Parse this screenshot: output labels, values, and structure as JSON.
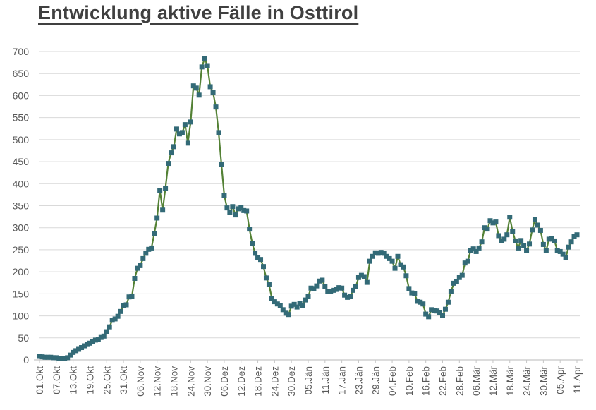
{
  "title": "Entwicklung aktive Fälle in Osttirol",
  "colors": {
    "line": "#538135",
    "marker": "#336A77",
    "grid": "#D9D9D9",
    "axis": "#C6C6C6",
    "tick_text": "#595959",
    "title_text": "#404040",
    "background": "#FFFFFF"
  },
  "chart_data": {
    "type": "line",
    "title": "Entwicklung aktive Fälle in Osttirol",
    "xlabel": "",
    "ylabel": "",
    "grid": "horizontal",
    "legend": "none",
    "marker": "square",
    "ylim": [
      0,
      700
    ],
    "y_tick_step": 50,
    "y_ticks": [
      0,
      50,
      100,
      150,
      200,
      250,
      300,
      350,
      400,
      450,
      500,
      550,
      600,
      650,
      700
    ],
    "x_tick_labels": [
      "01.Okt",
      "07.Okt",
      "13.Okt",
      "19.Okt",
      "25.Okt",
      "31.Okt",
      "06.Nov",
      "12.Nov",
      "18.Nov",
      "24.Nov",
      "30.Nov",
      "06.Dez",
      "12.Dez",
      "18.Dez",
      "24.Dez",
      "30.Dez",
      "05.Jän",
      "11.Jän",
      "17.Jän",
      "23.Jän",
      "29.Jän",
      "04.Feb",
      "10.Feb",
      "16.Feb",
      "22.Feb",
      "28.Feb",
      "06.Mär",
      "12.Mär",
      "18.Mär",
      "24.Mär",
      "30.Mär",
      "05.Apr",
      "11.Apr"
    ],
    "x_tick_every_n_points": 6,
    "x_is_daily": true,
    "values": [
      8,
      7,
      6,
      6,
      6,
      5,
      5,
      4,
      4,
      4,
      5,
      11,
      17,
      21,
      24,
      28,
      32,
      35,
      38,
      42,
      45,
      47,
      51,
      54,
      64,
      75,
      90,
      93,
      99,
      110,
      123,
      125,
      143,
      144,
      185,
      208,
      214,
      230,
      242,
      251,
      254,
      287,
      322,
      385,
      340,
      390,
      446,
      470,
      484,
      524,
      513,
      516,
      534,
      492,
      540,
      622,
      617,
      601,
      665,
      684,
      668,
      620,
      607,
      574,
      516,
      444,
      374,
      345,
      334,
      348,
      329,
      343,
      346,
      339,
      338,
      297,
      265,
      242,
      232,
      228,
      212,
      186,
      171,
      140,
      132,
      127,
      124,
      114,
      106,
      103,
      122,
      126,
      120,
      128,
      123,
      136,
      144,
      163,
      162,
      168,
      179,
      181,
      167,
      155,
      156,
      158,
      160,
      164,
      163,
      147,
      142,
      144,
      158,
      166,
      187,
      192,
      189,
      176,
      224,
      235,
      243,
      242,
      244,
      242,
      235,
      230,
      224,
      208,
      235,
      216,
      211,
      191,
      162,
      152,
      150,
      133,
      131,
      127,
      104,
      98,
      114,
      112,
      111,
      107,
      101,
      115,
      131,
      155,
      174,
      178,
      187,
      192,
      220,
      224,
      248,
      252,
      246,
      254,
      268,
      300,
      297,
      316,
      311,
      313,
      282,
      270,
      274,
      284,
      324,
      292,
      270,
      254,
      271,
      260,
      248,
      263,
      295,
      319,
      306,
      294,
      262,
      248,
      274,
      276,
      270,
      248,
      246,
      240,
      232,
      256,
      268,
      280,
      284
    ]
  }
}
